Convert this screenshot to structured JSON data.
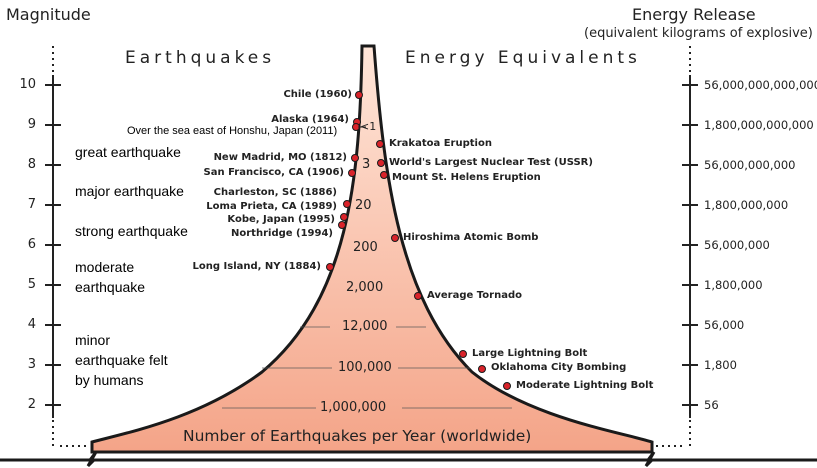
{
  "header": {
    "magnitude_title": "Magnitude",
    "energy_title": "Energy Release",
    "energy_subtitle": "(equivalent kilograms of explosive)",
    "earthquakes_title": "Earthquakes",
    "equivalents_title": "Energy Equivalents"
  },
  "magnitudes": [
    "10",
    "9",
    "8",
    "7",
    "6",
    "5",
    "4",
    "3",
    "2"
  ],
  "energy_values": [
    "56,000,000,000,000",
    "1,800,000,000,000",
    "56,000,000,000",
    "1,800,000,000",
    "56,000,000",
    "1,800,000",
    "56,000",
    "1,800",
    "56"
  ],
  "classes": [
    {
      "lines": [
        "great earthquake"
      ]
    },
    {
      "lines": [
        "major earthquake"
      ]
    },
    {
      "lines": [
        "strong earthquake"
      ]
    },
    {
      "lines": [
        "moderate",
        "earthquake"
      ]
    },
    {
      "lines": [
        "minor",
        "earthquake felt",
        "by humans"
      ]
    }
  ],
  "earthquakes": [
    {
      "label": "Chile (1960)"
    },
    {
      "label": "Alaska (1964)"
    },
    {
      "label": "Over the sea east of Honshu, Japan (2011)"
    },
    {
      "label": "New Madrid, MO (1812)"
    },
    {
      "label": "San Francisco, CA (1906)"
    },
    {
      "label": "Charleston, SC (1886)"
    },
    {
      "label": "Loma Prieta, CA (1989)"
    },
    {
      "label": "Kobe, Japan (1995)"
    },
    {
      "label": "Northridge (1994)"
    },
    {
      "label": "Long Island, NY (1884)"
    }
  ],
  "equivalents": [
    {
      "label": "Krakatoa Eruption"
    },
    {
      "label": "World's Largest Nuclear Test (USSR)"
    },
    {
      "label": "Mount St. Helens Eruption"
    },
    {
      "label": "Hiroshima Atomic Bomb"
    },
    {
      "label": "Average Tornado"
    },
    {
      "label": "Large Lightning Bolt"
    },
    {
      "label": "Oklahoma City Bombing"
    },
    {
      "label": "Moderate Lightning Bolt"
    }
  ],
  "counts": [
    "<1",
    "3",
    "20",
    "200",
    "2,000",
    "12,000",
    "100,000",
    "1,000,000"
  ],
  "footer": "Number of Earthquakes per Year (worldwide)",
  "colors": {
    "fill_top": "#ffe6d9",
    "fill_bottom": "#f4a488",
    "dot": "#d9232a",
    "outline": "#1a1a1a"
  }
}
